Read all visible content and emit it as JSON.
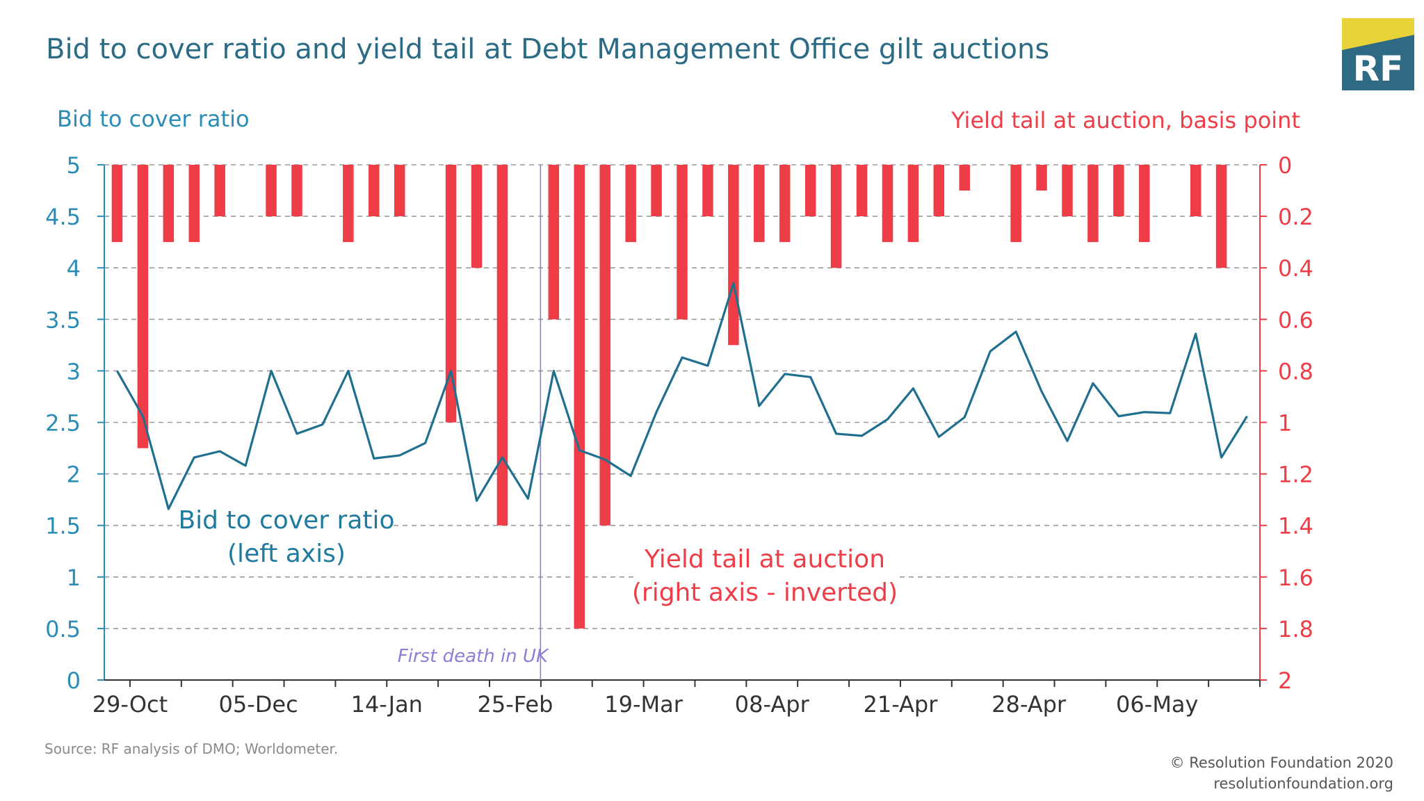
{
  "chart_data": {
    "type": "bar+line",
    "title": "Bid to cover ratio and yield tail at Debt Management Office gilt auctions",
    "left_axis_title": "Bid to cover ratio",
    "right_axis_title": "Yield tail at auction, basis point",
    "left_ylim": [
      0,
      5
    ],
    "left_ticks": [
      "5",
      "4.5",
      "4",
      "3.5",
      "3",
      "2.5",
      "2",
      "1.5",
      "1",
      "0.5",
      "0"
    ],
    "right_ylim": [
      0,
      2
    ],
    "right_inverted": true,
    "right_ticks": [
      "0",
      "0.2",
      "0.4",
      "0.6",
      "0.8",
      "1",
      "1.2",
      "1.4",
      "1.6",
      "1.8",
      "2"
    ],
    "x_tick_labels": [
      "29-Oct",
      "05-Dec",
      "14-Jan",
      "25-Feb",
      "19-Mar",
      "08-Apr",
      "21-Apr",
      "28-Apr",
      "06-May"
    ],
    "auction_count": 45,
    "grid": true,
    "series": [
      {
        "name": "Bid to cover ratio",
        "axis": "left",
        "type": "line",
        "color": "#1f6f8f",
        "values": [
          3.0,
          2.56,
          1.66,
          2.16,
          2.22,
          2.08,
          3.0,
          2.39,
          2.48,
          3.0,
          2.15,
          2.18,
          2.3,
          3.0,
          1.74,
          2.16,
          1.76,
          3.0,
          2.23,
          2.14,
          1.98,
          2.6,
          3.13,
          3.05,
          3.85,
          2.66,
          2.97,
          2.94,
          2.39,
          2.37,
          2.53,
          2.83,
          2.36,
          2.55,
          3.19,
          3.38,
          2.8,
          2.32,
          2.88,
          2.56,
          2.6,
          2.59,
          3.36,
          2.16,
          2.56
        ]
      },
      {
        "name": "Yield tail at auction",
        "axis": "right",
        "type": "bar",
        "color": "#ee3d47",
        "values": [
          0.3,
          1.1,
          0.3,
          0.3,
          0.2,
          null,
          0.2,
          0.2,
          null,
          0.3,
          0.2,
          0.2,
          null,
          1.0,
          0.4,
          1.4,
          null,
          0.6,
          1.8,
          1.4,
          0.3,
          0.2,
          0.6,
          0.2,
          0.7,
          0.3,
          0.3,
          0.2,
          0.4,
          0.2,
          0.3,
          0.3,
          0.2,
          0.1,
          null,
          0.3,
          0.1,
          0.2,
          0.3,
          0.2,
          0.3,
          null,
          0.2,
          0.4,
          null
        ]
      }
    ],
    "annotations": {
      "line_label_1": "Bid to cover ratio",
      "line_label_2": "(left axis)",
      "bar_label_1": "Yield tail at auction",
      "bar_label_2": "(right axis - inverted)",
      "event_label": "First death in UK"
    },
    "source": "Source: RF analysis of DMO; Worldometer.",
    "copyright": "© Resolution Foundation 2020",
    "website": "resolutionfoundation.org",
    "logo_text": "RF",
    "colors": {
      "title": "#2c6b86",
      "left_axis": "#2b8cb5",
      "right_axis": "#ee3d47",
      "line": "#1f6f8f",
      "bars": "#ee3d47",
      "event_line": "#8b7fd6",
      "logo_bg": "#2f6a84",
      "logo_accent": "#e8d33b"
    }
  }
}
